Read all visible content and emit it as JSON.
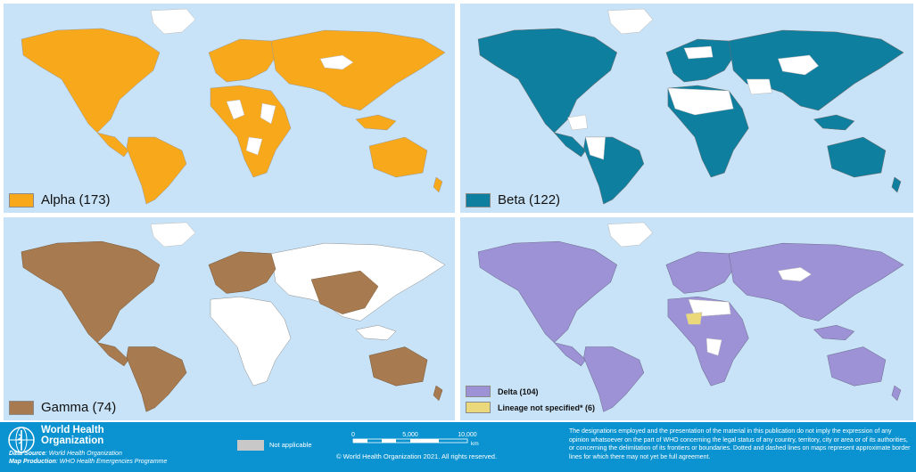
{
  "panels": [
    {
      "id": "alpha",
      "label": "Alpha (173)",
      "color": "#f7a81b"
    },
    {
      "id": "beta",
      "label": "Beta (122)",
      "color": "#0e7f9f"
    },
    {
      "id": "gamma",
      "label": "Gamma (74)",
      "color": "#a87a4f"
    },
    {
      "id": "delta",
      "label": "Delta (104)",
      "color": "#9d92d6",
      "lineage_label": "Lineage not specified* (6)",
      "lineage_color": "#ead87a"
    }
  ],
  "footer": {
    "org_line1": "World Health",
    "org_line2": "Organization",
    "data_source_label": "Data Source",
    "data_source": ": World Health Organization",
    "map_production_label": "Map Production",
    "map_production": ": WHO Health Emergencies Programme",
    "not_applicable": "Not applicable",
    "not_applicable_color": "#c8c8c8",
    "scale_ticks": [
      "0",
      "5,000",
      "10,000"
    ],
    "scale_unit": "km",
    "copyright": "© World Health Organization  2021.  All rights reserved.",
    "disclaimer": "The designations employed and the presentation of the material in this publication do not imply the expression of any opinion whatsoever on the part of WHO concerning the legal status of any country, territory, city or area or of its authorities, or concerning the delimitation of its frontiers or boundaries. Dotted and dashed lines on maps represent approximate border lines for which there may not yet be full agreement."
  },
  "colors": {
    "ocean": "#c8e3f7",
    "no_data": "#ffffff",
    "footer": "#0a93d0"
  },
  "icons": [
    "who-logo-icon"
  ]
}
